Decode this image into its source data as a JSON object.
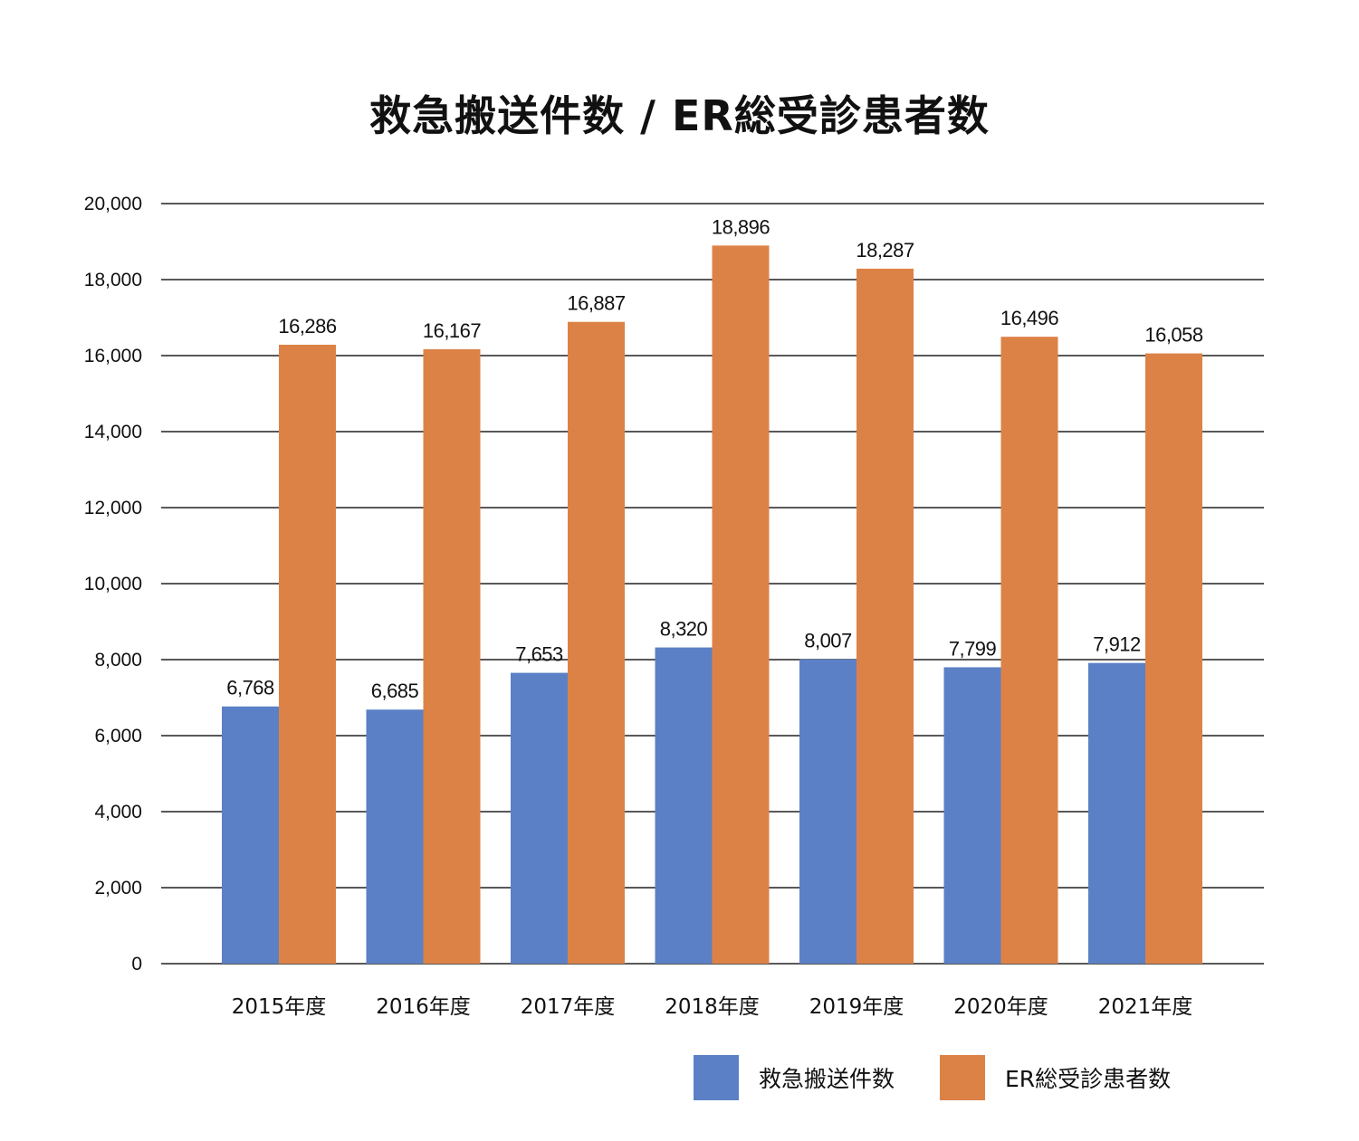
{
  "chart_data": {
    "type": "bar",
    "title": "救急搬送件数 / ER総受診患者数",
    "categories": [
      "2015年度",
      "2016年度",
      "2017年度",
      "2018年度",
      "2019年度",
      "2020年度",
      "2021年度"
    ],
    "series": [
      {
        "name": "救急搬送件数",
        "color": "#5b80c6",
        "values": [
          6768,
          6685,
          7653,
          8320,
          8007,
          7799,
          7912
        ],
        "labels": [
          "6,768",
          "6,685",
          "7,653",
          "8,320",
          "8,007",
          "7,799",
          "7,912"
        ]
      },
      {
        "name": "ER総受診患者数",
        "color": "#dc8247",
        "values": [
          16286,
          16167,
          16887,
          18896,
          18287,
          16496,
          16058
        ],
        "labels": [
          "16,286",
          "16,167",
          "16,887",
          "18,896",
          "18,287",
          "16,496",
          "16,058"
        ]
      }
    ],
    "ylim": [
      0,
      20000
    ],
    "yticks": [
      0,
      2000,
      4000,
      6000,
      8000,
      10000,
      12000,
      14000,
      16000,
      18000,
      20000
    ],
    "ytick_labels": [
      "0",
      "2,000",
      "4,000",
      "6,000",
      "8,000",
      "10,000",
      "12,000",
      "14,000",
      "16,000",
      "18,000",
      "20,000"
    ],
    "grid": true,
    "legend_position": "bottom-right"
  }
}
